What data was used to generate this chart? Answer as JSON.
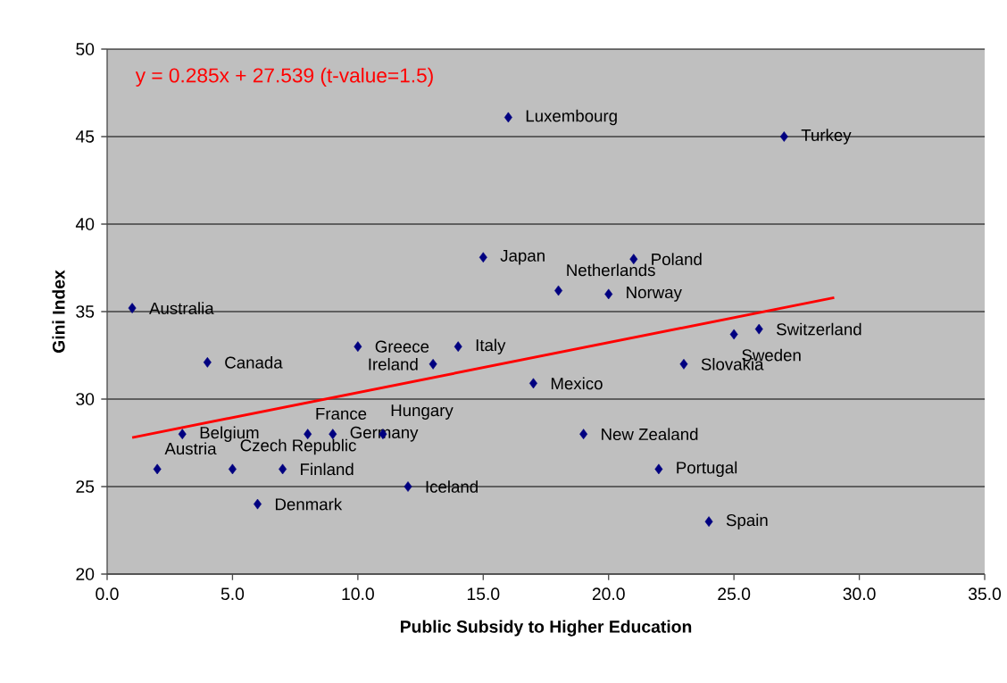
{
  "chart_data": {
    "type": "scatter",
    "xlabel": "Public Subsidy to Higher Education",
    "ylabel": "Gini Index",
    "annotations": [
      "y = 0.285x + 27.539 (t-value=1.5)"
    ],
    "xlim": [
      0,
      35
    ],
    "ylim": [
      20,
      50
    ],
    "xticks": [
      {
        "value": 0,
        "label": "0.0"
      },
      {
        "value": 5,
        "label": "5.0"
      },
      {
        "value": 10,
        "label": "10.0"
      },
      {
        "value": 15,
        "label": "15.0"
      },
      {
        "value": 20,
        "label": "20.0"
      },
      {
        "value": 25,
        "label": "25.0"
      },
      {
        "value": 30,
        "label": "30.0"
      },
      {
        "value": 35,
        "label": "35.0"
      }
    ],
    "yticks": [
      20,
      25,
      30,
      35,
      40,
      45,
      50
    ],
    "grid": "y",
    "series": [
      {
        "color": "#000080",
        "marker": "diamond",
        "x": [
          1,
          2,
          3,
          4,
          5,
          6,
          7,
          8,
          9,
          10,
          11,
          12,
          13,
          14,
          15,
          16,
          17,
          18,
          19,
          20,
          21,
          22,
          23,
          24,
          25,
          26,
          27
        ],
        "values": [
          35.2,
          26,
          28,
          32.1,
          26,
          24,
          26,
          28,
          28,
          33,
          28,
          25,
          32,
          33,
          38.1,
          46.1,
          30.9,
          36.2,
          28,
          36,
          38,
          26,
          32,
          23,
          33.7,
          34,
          45
        ],
        "value_labels": [
          "Australia",
          "Austria",
          "Belgium",
          "Canada",
          "Czech Republic",
          "Denmark",
          "Finland",
          "France",
          "Germany",
          "Greece",
          "Hungary",
          "Iceland",
          "Ireland",
          "Italy",
          "Japan",
          "Luxembourg",
          "Mexico",
          "Netherlands",
          "New Zealand",
          "Norway",
          "Poland",
          "Portugal",
          "Slovakia",
          "Spain",
          "Sweden",
          "Switzerland",
          "Turkey"
        ]
      },
      {
        "type": "line",
        "color": "#ff0000",
        "x": [
          1,
          29
        ],
        "values": [
          27.8,
          35.8
        ]
      }
    ]
  }
}
